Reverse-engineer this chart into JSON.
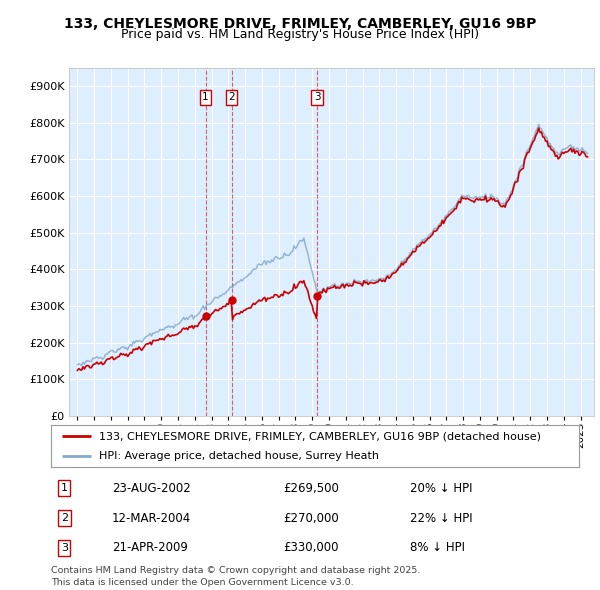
{
  "title1": "133, CHEYLESMORE DRIVE, FRIMLEY, CAMBERLEY, GU16 9BP",
  "title2": "Price paid vs. HM Land Registry's House Price Index (HPI)",
  "legend_line1": "133, CHEYLESMORE DRIVE, FRIMLEY, CAMBERLEY, GU16 9BP (detached house)",
  "legend_line2": "HPI: Average price, detached house, Surrey Heath",
  "transactions": [
    {
      "num": 1,
      "date": "23-AUG-2002",
      "date_x": 2002.64,
      "price": 269500,
      "pct": "20% ↓ HPI"
    },
    {
      "num": 2,
      "date": "12-MAR-2004",
      "date_x": 2004.19,
      "price": 270000,
      "pct": "22% ↓ HPI"
    },
    {
      "num": 3,
      "date": "21-APR-2009",
      "date_x": 2009.3,
      "price": 330000,
      "pct": "8% ↓ HPI"
    }
  ],
  "red_color": "#cc0000",
  "blue_color": "#88aacc",
  "bg_color": "#ddeeff",
  "plot_bg": "#ffffff",
  "ylim": [
    0,
    950000
  ],
  "yticks": [
    0,
    100000,
    200000,
    300000,
    400000,
    500000,
    600000,
    700000,
    800000,
    900000
  ],
  "xlim_start": 1994.5,
  "xlim_end": 2025.8,
  "footer": "Contains HM Land Registry data © Crown copyright and database right 2025.\nThis data is licensed under the Open Government Licence v3.0."
}
